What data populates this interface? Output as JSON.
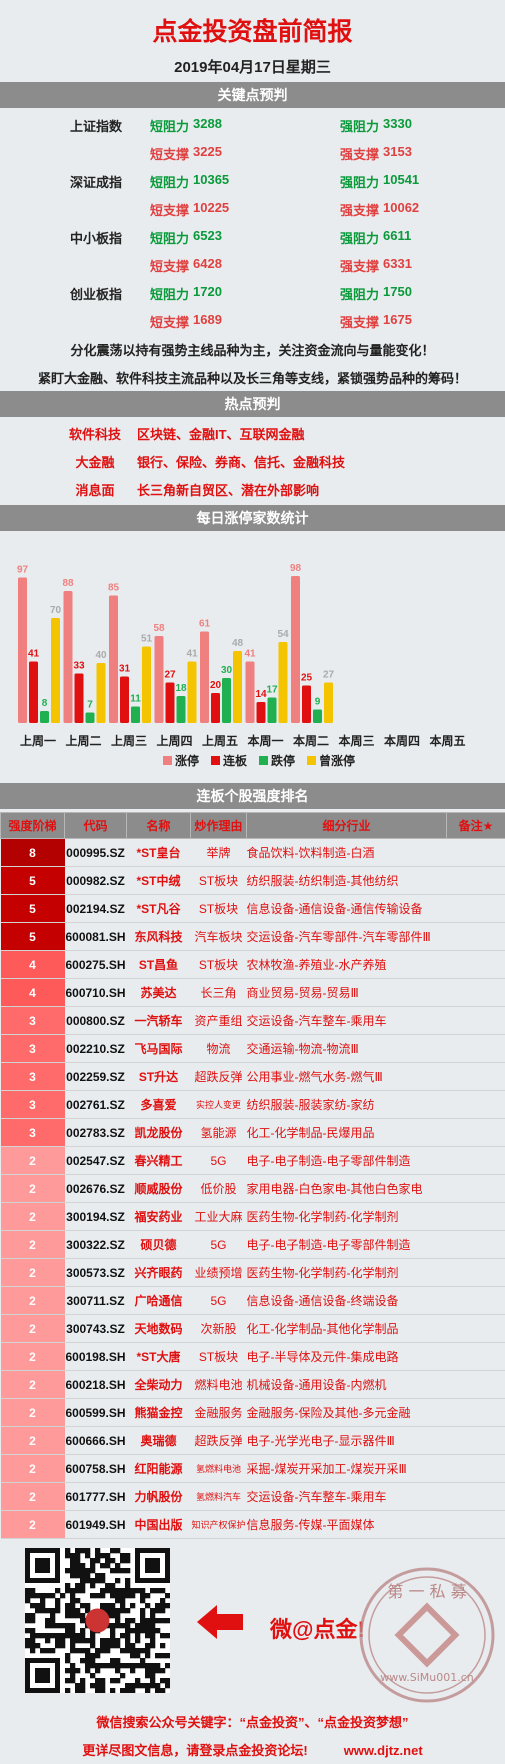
{
  "title": "点金投资盘前简报",
  "date": "2019年04月17日星期三",
  "key_points": {
    "header": "关键点预判",
    "indices": [
      {
        "name": "上证指数",
        "short_res_label": "短阻力",
        "short_res": "3288",
        "strong_res_label": "强阻力",
        "strong_res": "3330",
        "short_sup_label": "短支撑",
        "short_sup": "3225",
        "strong_sup_label": "强支撑",
        "strong_sup": "3153"
      },
      {
        "name": "深证成指",
        "short_res_label": "短阻力",
        "short_res": "10365",
        "strong_res_label": "强阻力",
        "strong_res": "10541",
        "short_sup_label": "短支撑",
        "short_sup": "10225",
        "strong_sup_label": "强支撑",
        "strong_sup": "10062"
      },
      {
        "name": "中小板指",
        "short_res_label": "短阻力",
        "short_res": "6523",
        "strong_res_label": "强阻力",
        "strong_res": "6611",
        "short_sup_label": "短支撑",
        "short_sup": "6428",
        "strong_sup_label": "强支撑",
        "strong_sup": "6331"
      },
      {
        "name": "创业板指",
        "short_res_label": "短阻力",
        "short_res": "1720",
        "strong_res_label": "强阻力",
        "strong_res": "1750",
        "short_sup_label": "短支撑",
        "short_sup": "1689",
        "strong_sup_label": "强支撑",
        "strong_sup": "1675"
      }
    ],
    "note1": "分化震荡以持有强势主线品种为主，关注资金流向与量能变化！",
    "note2": "紧盯大金融、软件科技主流品种以及长三角等支线，紧锁强势品种的筹码！"
  },
  "hot": {
    "header": "热点预判",
    "items": [
      {
        "label": "软件科技",
        "text": "区块链、金融IT、互联网金融"
      },
      {
        "label": "大金融",
        "text": "银行、保险、券商、信托、金融科技"
      },
      {
        "label": "消息面",
        "text": "长三角新自贸区、潜在外部影响"
      }
    ]
  },
  "chart_data": {
    "title": "每日涨停家数统计",
    "type": "bar",
    "categories": [
      "上周一",
      "上周二",
      "上周三",
      "上周四",
      "上周五",
      "本周一",
      "本周二",
      "本周三",
      "本周四",
      "本周五"
    ],
    "series": [
      {
        "name": "涨停",
        "color": "#f08080",
        "values": [
          97,
          88,
          85,
          58,
          61,
          41,
          98,
          null,
          null,
          null
        ]
      },
      {
        "name": "连板",
        "color": "#e01010",
        "values": [
          41,
          33,
          31,
          27,
          20,
          14,
          25,
          null,
          null,
          null
        ]
      },
      {
        "name": "跌停",
        "color": "#20b050",
        "values": [
          8,
          7,
          11,
          18,
          30,
          17,
          9,
          null,
          null,
          null
        ]
      },
      {
        "name": "曾涨停",
        "color": "#f5c400",
        "values": [
          70,
          40,
          51,
          41,
          48,
          54,
          27,
          null,
          null,
          null
        ]
      }
    ],
    "legend_position": "bottom",
    "ylim": [
      0,
      110
    ],
    "grid": false
  },
  "ranking": {
    "header": "连板个股强度排名",
    "columns": [
      "强度阶梯",
      "代码",
      "名称",
      "炒作理由",
      "细分行业",
      "备注★"
    ],
    "rows": [
      {
        "level": "8",
        "code": "000995.SZ",
        "name": "*ST皇台",
        "reason": "举牌",
        "industry": "食品饮料-饮料制造-白酒"
      },
      {
        "level": "5",
        "code": "000982.SZ",
        "name": "*ST中绒",
        "reason": "ST板块",
        "industry": "纺织服装-纺织制造-其他纺织"
      },
      {
        "level": "5",
        "code": "002194.SZ",
        "name": "*ST凡谷",
        "reason": "ST板块",
        "industry": "信息设备-通信设备-通信传输设备"
      },
      {
        "level": "5",
        "code": "600081.SH",
        "name": "东风科技",
        "reason": "汽车板块",
        "industry": "交运设备-汽车零部件-汽车零部件Ⅲ"
      },
      {
        "level": "4",
        "code": "600275.SH",
        "name": "ST昌鱼",
        "reason": "ST板块",
        "industry": "农林牧渔-养殖业-水产养殖"
      },
      {
        "level": "4",
        "code": "600710.SH",
        "name": "苏美达",
        "reason": "长三角",
        "industry": "商业贸易-贸易-贸易Ⅲ"
      },
      {
        "level": "3",
        "code": "000800.SZ",
        "name": "一汽轿车",
        "reason": "资产重组",
        "industry": "交运设备-汽车整车-乘用车"
      },
      {
        "level": "3",
        "code": "002210.SZ",
        "name": "飞马国际",
        "reason": "物流",
        "industry": "交通运输-物流-物流Ⅲ"
      },
      {
        "level": "3",
        "code": "002259.SZ",
        "name": "ST升达",
        "reason": "超跌反弹",
        "industry": "公用事业-燃气水务-燃气Ⅲ"
      },
      {
        "level": "3",
        "code": "002761.SZ",
        "name": "多喜爱",
        "reason": "实控人变更",
        "industry": "纺织服装-服装家纺-家纺"
      },
      {
        "level": "3",
        "code": "002783.SZ",
        "name": "凯龙股份",
        "reason": "氢能源",
        "industry": "化工-化学制品-民爆用品"
      },
      {
        "level": "2",
        "code": "002547.SZ",
        "name": "春兴精工",
        "reason": "5G",
        "industry": "电子-电子制造-电子零部件制造"
      },
      {
        "level": "2",
        "code": "002676.SZ",
        "name": "顺威股份",
        "reason": "低价股",
        "industry": "家用电器-白色家电-其他白色家电"
      },
      {
        "level": "2",
        "code": "300194.SZ",
        "name": "福安药业",
        "reason": "工业大麻",
        "industry": "医药生物-化学制药-化学制剂"
      },
      {
        "level": "2",
        "code": "300322.SZ",
        "name": "硕贝德",
        "reason": "5G",
        "industry": "电子-电子制造-电子零部件制造"
      },
      {
        "level": "2",
        "code": "300573.SZ",
        "name": "兴齐眼药",
        "reason": "业绩预增",
        "industry": "医药生物-化学制药-化学制剂"
      },
      {
        "level": "2",
        "code": "300711.SZ",
        "name": "广哈通信",
        "reason": "5G",
        "industry": "信息设备-通信设备-终端设备"
      },
      {
        "level": "2",
        "code": "300743.SZ",
        "name": "天地数码",
        "reason": "次新股",
        "industry": "化工-化学制品-其他化学制品"
      },
      {
        "level": "2",
        "code": "600198.SH",
        "name": "*ST大唐",
        "reason": "ST板块",
        "industry": "电子-半导体及元件-集成电路"
      },
      {
        "level": "2",
        "code": "600218.SH",
        "name": "全柴动力",
        "reason": "燃料电池",
        "industry": "机械设备-通用设备-内燃机"
      },
      {
        "level": "2",
        "code": "600599.SH",
        "name": "熊猫金控",
        "reason": "金融服务",
        "industry": "金融服务-保险及其他-多元金融"
      },
      {
        "level": "2",
        "code": "600666.SH",
        "name": "奥瑞德",
        "reason": "超跌反弹",
        "industry": "电子-光学光电子-显示器件Ⅲ"
      },
      {
        "level": "2",
        "code": "600758.SH",
        "name": "红阳能源",
        "reason": "氢燃料电池",
        "industry": "采掘-煤炭开采加工-煤炭开采Ⅲ"
      },
      {
        "level": "2",
        "code": "601777.SH",
        "name": "力帆股份",
        "reason": "氢燃料汽车",
        "industry": "交运设备-汽车整车-乘用车"
      },
      {
        "level": "2",
        "code": "601949.SH",
        "name": "中国出版",
        "reason": "知识产权保护",
        "industry": "信息服务-传媒-平面媒体"
      }
    ]
  },
  "footer": {
    "weibo": "微@点金!",
    "seal_top": "第 一 私 募",
    "seal_bottom": "www.SiMu001.cn",
    "line1": "微信搜索公众号关键字：“点金投资”、“点金投资梦想”",
    "line2": "更详尽图文信息，请登录点金投资论坛!",
    "url": "www.djtz.net"
  },
  "colors": {
    "title": "#e01010",
    "header_bar": "#8c8c8c",
    "level_8": "#b30000",
    "level_5": "#c40000",
    "level_4": "#ff5a5a",
    "level_3": "#ff6b6b",
    "level_2": "#ff9a9a"
  }
}
